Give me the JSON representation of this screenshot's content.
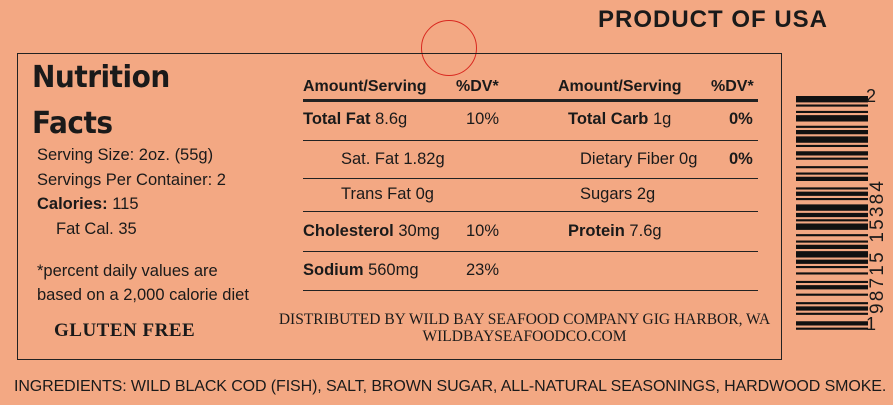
{
  "header": {
    "product_of": "PRODUCT OF USA"
  },
  "title": {
    "line1": "Nutrition",
    "line2": "Facts"
  },
  "serving": {
    "size": "Serving Size: 2oz. (55g)",
    "per_container": "Servings Per Container: 2",
    "calories_label": "Calories:",
    "calories_value": " 115",
    "fat_cal": "Fat Cal. 35"
  },
  "footnote": {
    "line1": "*percent daily values are",
    "line2": "based on a 2,000 calorie diet"
  },
  "gluten": "GLUTEN FREE",
  "distributor": {
    "line1": "DISTRIBUTED BY WILD BAY SEAFOOD COMPANY GIG HARBOR, WA",
    "line2": "WILDBAYSEAFOODCO.COM"
  },
  "table": {
    "headers": {
      "amount1": "Amount/Serving",
      "dv1": "%DV*",
      "amount2": "Amount/Serving",
      "dv2": "%DV*"
    },
    "left": [
      {
        "label": "Total Fat",
        "value": " 8.6g",
        "dv": "10%",
        "bold": true
      },
      {
        "label": "Sat. Fat 1.82g",
        "value": "",
        "dv": "",
        "bold": false
      },
      {
        "label": "Trans Fat 0g",
        "value": "",
        "dv": "",
        "bold": false
      },
      {
        "label": "Cholesterol",
        "value": " 30mg",
        "dv": "10%",
        "bold": true
      },
      {
        "label": "Sodium",
        "value": " 560mg",
        "dv": "23%",
        "bold": true
      }
    ],
    "right": [
      {
        "label": "Total Carb",
        "value": " 1g",
        "dv": "0%",
        "bold": true
      },
      {
        "label": "Dietary Fiber 0g",
        "value": "",
        "dv": "0%",
        "bold": false
      },
      {
        "label": "Sugars 2g",
        "value": "",
        "dv": "",
        "bold": false
      },
      {
        "label": "Protein",
        "value": " 7.6g",
        "dv": "",
        "bold": true
      }
    ]
  },
  "ingredients": "INGREDIENTS: WILD BLACK COD (FISH), SALT, BROWN SUGAR, ALL-NATURAL SEASONINGS, HARDWOOD SMOKE.",
  "barcode": {
    "top_digit": "2",
    "middle": "98715 15384",
    "bottom_digit": "1"
  },
  "colors": {
    "background": "#f3a883",
    "text": "#1a1a1a",
    "circle": "#d9281f"
  }
}
